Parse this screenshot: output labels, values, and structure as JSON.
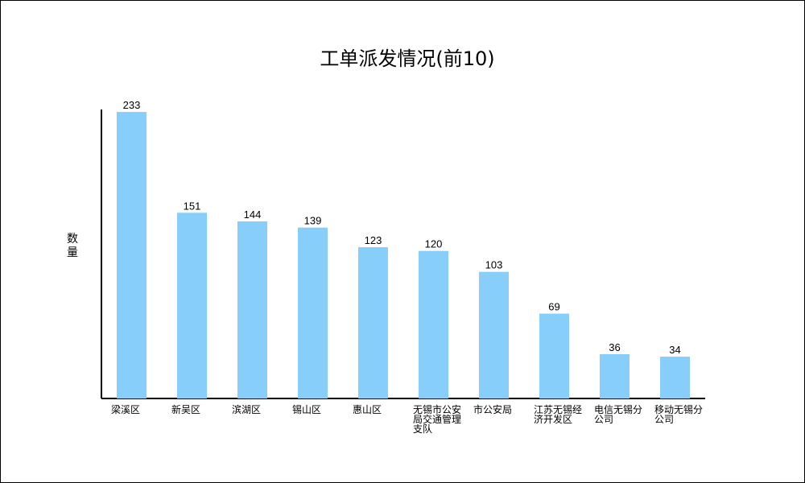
{
  "chart_data": {
    "type": "bar",
    "title": "工单派发情况(前10)",
    "ylabel": "数量",
    "xlabel": "",
    "categories": [
      "梁溪区",
      "新吴区",
      "滨湖区",
      "锡山区",
      "惠山区",
      "无锡市公安局交通管理支队",
      "市公安局",
      "江苏无锡经济开发区",
      "电信无锡分公司",
      "移动无锡分公司"
    ],
    "values": [
      233,
      151,
      144,
      139,
      123,
      120,
      103,
      69,
      36,
      34
    ],
    "ylim": [
      0,
      235
    ],
    "bar_color": "#87CEFA",
    "grid": false,
    "legend": "none"
  }
}
